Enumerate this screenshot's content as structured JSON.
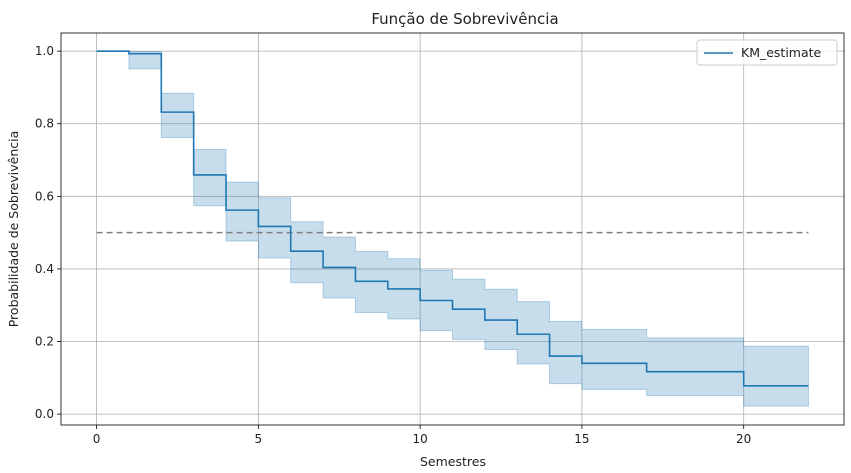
{
  "chart_data": {
    "type": "line",
    "title": "Função de Sobrevivência",
    "xlabel": "Semestres",
    "ylabel": "Probabilidade de Sobrevivência",
    "xlim": [
      -1.1,
      23.1
    ],
    "ylim": [
      -0.03,
      1.05
    ],
    "x_ticks": [
      0,
      5,
      10,
      15,
      20
    ],
    "y_ticks": [
      0.0,
      0.2,
      0.4,
      0.6,
      0.8,
      1.0
    ],
    "x_tick_labels": [
      "0",
      "5",
      "10",
      "15",
      "20"
    ],
    "y_tick_labels": [
      "0.0",
      "0.2",
      "0.4",
      "0.6",
      "0.8",
      "1.0"
    ],
    "grid": true,
    "legend_position": "top-right",
    "series": [
      {
        "name": "KM_estimate",
        "color": "#1f77b4",
        "x": [
          0,
          1,
          2,
          3,
          4,
          5,
          6,
          7,
          8,
          9,
          10,
          11,
          12,
          13,
          14,
          15,
          17,
          20,
          22
        ],
        "y": [
          1.0,
          0.993,
          0.832,
          0.659,
          0.562,
          0.517,
          0.449,
          0.404,
          0.366,
          0.345,
          0.313,
          0.289,
          0.259,
          0.22,
          0.16,
          0.14,
          0.117,
          0.078,
          0.078
        ],
        "ci_lower": [
          1.0,
          0.951,
          0.762,
          0.574,
          0.477,
          0.43,
          0.362,
          0.32,
          0.28,
          0.262,
          0.23,
          0.206,
          0.178,
          0.138,
          0.084,
          0.068,
          0.051,
          0.022,
          0.022
        ],
        "ci_upper": [
          1.0,
          0.999,
          0.884,
          0.729,
          0.639,
          0.596,
          0.53,
          0.488,
          0.448,
          0.428,
          0.396,
          0.372,
          0.344,
          0.31,
          0.255,
          0.233,
          0.21,
          0.187,
          0.187
        ]
      }
    ],
    "reference_line": {
      "y": 0.5,
      "x": [
        0,
        22
      ],
      "style": "dashed",
      "color": "#808080"
    }
  }
}
